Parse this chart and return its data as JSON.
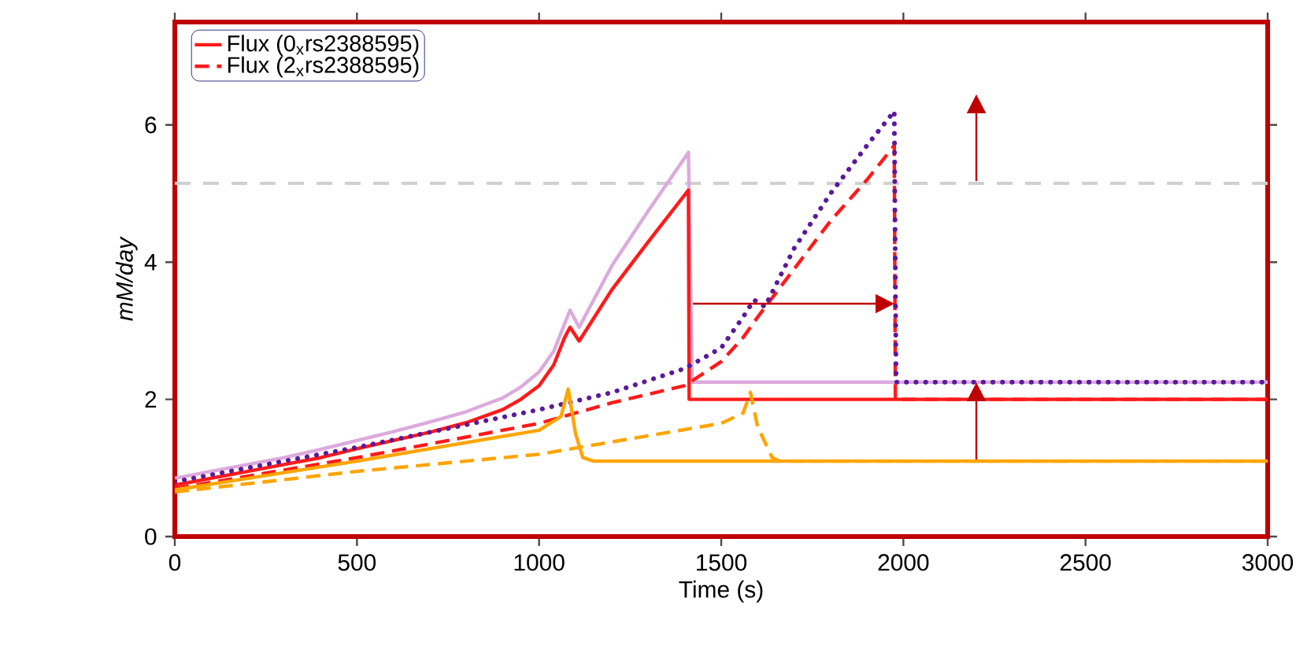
{
  "chart_data": {
    "type": "line",
    "xlabel": "Time (s)",
    "ylabel": "mM/day",
    "xlim": [
      0,
      3000
    ],
    "xticks": [
      0,
      500,
      1000,
      1500,
      2000,
      2500,
      3000
    ],
    "ylim": [
      0,
      7.5
    ],
    "yticks": [
      0,
      2,
      4,
      6
    ],
    "tick_labels": "xy",
    "legend": "top left",
    "marker": "none",
    "ref_lines": [
      {
        "axis": "y",
        "value": 5.15,
        "color": "#d0d0d0",
        "line_style": "dashed"
      }
    ],
    "series": [
      {
        "color": "#dcaadc",
        "line_style": "solid",
        "x": [
          0,
          100,
          200,
          300,
          400,
          500,
          600,
          700,
          800,
          900,
          950,
          1000,
          1040,
          1070,
          1085,
          1110,
          1200,
          1300,
          1410,
          1420,
          3000
        ],
        "values": [
          0.85,
          0.95,
          1.05,
          1.15,
          1.27,
          1.4,
          1.53,
          1.67,
          1.82,
          2.02,
          2.18,
          2.4,
          2.7,
          3.1,
          3.3,
          3.05,
          3.95,
          4.75,
          5.6,
          2.25,
          2.25
        ]
      },
      {
        "name": "Flux (0$_{x}$rs2388595)",
        "color": "#ff1a1a",
        "line_style": "solid",
        "x": [
          0,
          100,
          200,
          300,
          400,
          500,
          600,
          700,
          800,
          900,
          950,
          1000,
          1040,
          1070,
          1085,
          1110,
          1200,
          1300,
          1410,
          1412,
          3000
        ],
        "values": [
          0.75,
          0.85,
          0.95,
          1.05,
          1.15,
          1.28,
          1.4,
          1.52,
          1.66,
          1.85,
          2.0,
          2.2,
          2.5,
          2.9,
          3.05,
          2.85,
          3.6,
          4.3,
          5.05,
          2.0,
          2.0
        ]
      },
      {
        "name": "Flux (2$_{x}$rs2388595)",
        "color": "#ff1a1a",
        "line_style": "dashed",
        "x": [
          0,
          500,
          1000,
          1200,
          1400,
          1500,
          1560,
          1600,
          1700,
          1800,
          1900,
          1975,
          1978,
          3000
        ],
        "values": [
          0.7,
          1.15,
          1.65,
          1.95,
          2.2,
          2.55,
          2.9,
          3.2,
          3.9,
          4.6,
          5.2,
          5.7,
          2.0,
          2.0
        ]
      },
      {
        "color": "#5a1a9a",
        "line_style": "dotted",
        "x": [
          0,
          500,
          1000,
          1200,
          1400,
          1500,
          1560,
          1590,
          1620,
          1700,
          1800,
          1900,
          1975,
          1980,
          3000
        ],
        "values": [
          0.8,
          1.3,
          1.85,
          2.1,
          2.45,
          2.75,
          3.2,
          3.45,
          3.35,
          4.2,
          5.0,
          5.7,
          6.2,
          2.25,
          2.25
        ]
      },
      {
        "color": "#ffa500",
        "line_style": "solid",
        "x": [
          0,
          500,
          1000,
          1060,
          1080,
          1100,
          1120,
          1150,
          3000
        ],
        "values": [
          0.68,
          1.1,
          1.55,
          1.75,
          2.15,
          1.5,
          1.15,
          1.1,
          1.1
        ]
      },
      {
        "color": "#ffa500",
        "line_style": "dashed",
        "x": [
          0,
          500,
          1000,
          1500,
          1560,
          1580,
          1600,
          1640,
          1660,
          3000
        ],
        "values": [
          0.65,
          0.95,
          1.2,
          1.65,
          1.8,
          2.1,
          1.6,
          1.15,
          1.1,
          1.1
        ]
      }
    ]
  }
}
